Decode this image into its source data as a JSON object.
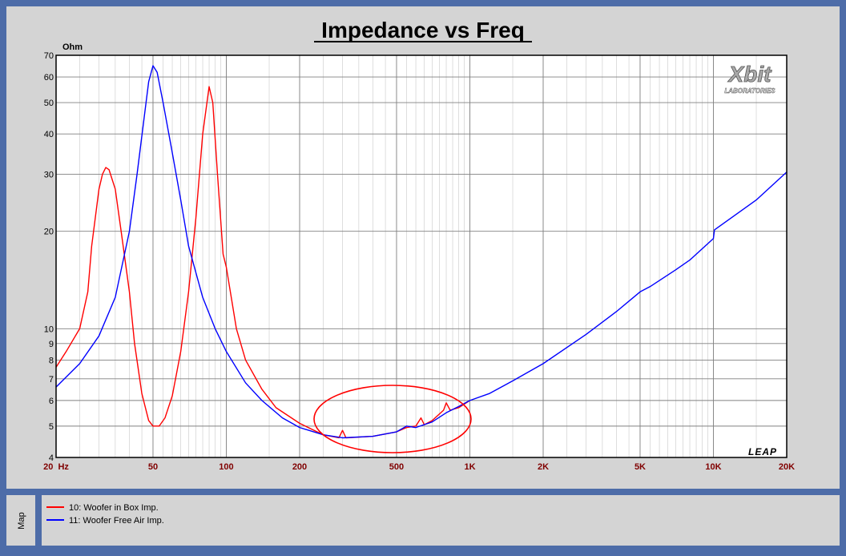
{
  "chart_data": {
    "type": "line",
    "title": "Impedance vs Freq",
    "y_label": "Ohm",
    "logo": "Xbit",
    "logo_sub": "LABORATORIES",
    "watermark": "LEAP",
    "legend_title": "Map",
    "x_log": true,
    "y_log": true,
    "grid": true,
    "xlim": [
      20,
      20000
    ],
    "ylim": [
      4,
      70
    ],
    "xticks": [
      {
        "value": 20,
        "label": "20  Hz"
      },
      50,
      100,
      200,
      500,
      {
        "value": 1000,
        "label": "1K"
      },
      {
        "value": 2000,
        "label": "2K"
      },
      {
        "value": 5000,
        "label": "5K"
      },
      {
        "value": 10000,
        "label": "10K"
      },
      {
        "value": 20000,
        "label": "20K"
      }
    ],
    "yticks": [
      4,
      5,
      6,
      7,
      8,
      9,
      10,
      20,
      30,
      40,
      50,
      60,
      70
    ],
    "series": [
      {
        "name": "10: Woofer in Box Imp.",
        "color": "#ff0000",
        "x": [
          20,
          22,
          25,
          27,
          28,
          30,
          31,
          32,
          33,
          35,
          37,
          40,
          42,
          45,
          48,
          50,
          53,
          56,
          60,
          65,
          70,
          75,
          80,
          85,
          88,
          92,
          97,
          100,
          110,
          120,
          140,
          160,
          200,
          250,
          290,
          300,
          310,
          400,
          500,
          550,
          600,
          630,
          650,
          700,
          780,
          800,
          830,
          900,
          1000
        ],
        "values": [
          7.6,
          8.5,
          10,
          13,
          18,
          27,
          30,
          31.5,
          31,
          27,
          20,
          13,
          9,
          6.3,
          5.2,
          5.0,
          5.0,
          5.3,
          6.2,
          8.5,
          13,
          22,
          40,
          56,
          50,
          30,
          17,
          15.5,
          10,
          8,
          6.5,
          5.7,
          5.1,
          4.7,
          4.6,
          4.85,
          4.6,
          4.65,
          4.8,
          4.95,
          5.0,
          5.3,
          5.05,
          5.2,
          5.6,
          5.9,
          5.6,
          5.7,
          6.0
        ]
      },
      {
        "name": "11: Woofer Free Air Imp.",
        "color": "#0000ff",
        "x": [
          20,
          25,
          30,
          35,
          40,
          43,
          46,
          48,
          50,
          52,
          55,
          60,
          65,
          70,
          80,
          90,
          100,
          120,
          140,
          170,
          200,
          250,
          300,
          400,
          500,
          550,
          600,
          700,
          800,
          900,
          1000,
          1200,
          1500,
          2000,
          3000,
          4000,
          5000,
          5500,
          7000,
          8000,
          10000,
          10100,
          15000,
          20000
        ],
        "values": [
          6.6,
          7.8,
          9.5,
          12.5,
          20,
          30,
          45,
          58,
          65,
          62,
          50,
          35,
          25,
          18,
          12.5,
          10,
          8.5,
          6.8,
          6.0,
          5.3,
          4.95,
          4.7,
          4.6,
          4.65,
          4.8,
          5.0,
          4.95,
          5.15,
          5.5,
          5.75,
          6.0,
          6.3,
          6.9,
          7.8,
          9.6,
          11.3,
          13.0,
          13.5,
          15.2,
          16.3,
          19.0,
          20.2,
          25,
          30.5
        ]
      }
    ]
  }
}
